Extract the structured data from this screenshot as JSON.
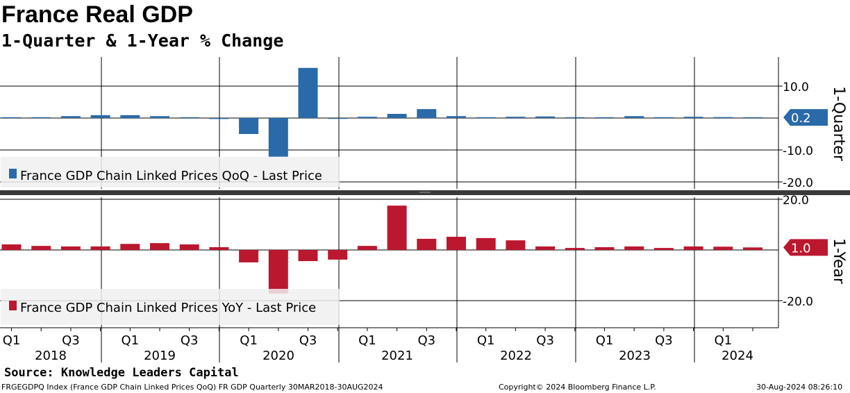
{
  "header": {
    "title": "France Real GDP",
    "subtitle": "1-Quarter & 1-Year % Change"
  },
  "chart_data": [
    {
      "type": "bar",
      "name": "top",
      "title": "1-Quarter",
      "series_name": "France GDP Chain Linked Prices QoQ - Last Price",
      "color": "#2a6aa8",
      "categories": [
        "2018Q1",
        "2018Q2",
        "2018Q3",
        "2018Q4",
        "2019Q1",
        "2019Q2",
        "2019Q3",
        "2019Q4",
        "2020Q1",
        "2020Q2",
        "2020Q3",
        "2020Q4",
        "2021Q1",
        "2021Q2",
        "2021Q3",
        "2021Q4",
        "2022Q1",
        "2022Q2",
        "2022Q3",
        "2022Q4",
        "2023Q1",
        "2023Q2",
        "2023Q3",
        "2023Q4",
        "2024Q1",
        "2024Q2"
      ],
      "values": [
        0.1,
        0.2,
        0.6,
        0.9,
        0.9,
        0.6,
        0.1,
        -0.3,
        -5.0,
        -12.1,
        15.7,
        -0.1,
        0.4,
        1.3,
        2.8,
        0.6,
        0.0,
        0.4,
        0.5,
        0.1,
        0.1,
        0.6,
        0.1,
        0.4,
        0.3,
        0.2
      ],
      "ylim": [
        -22,
        18
      ],
      "yticks": [
        10,
        -10,
        -20
      ],
      "ytick_labels": [
        "10.0",
        "-10.0",
        "-20.0"
      ],
      "last_value": "0.2",
      "ylabel": "1-Quarter"
    },
    {
      "type": "bar",
      "name": "bottom",
      "title": "1-Year",
      "series_name": "France GDP Chain Linked Prices YoY - Last Price",
      "color": "#bb1830",
      "categories": [
        "2018Q1",
        "2018Q2",
        "2018Q3",
        "2018Q4",
        "2019Q1",
        "2019Q2",
        "2019Q3",
        "2019Q4",
        "2020Q1",
        "2020Q2",
        "2020Q3",
        "2020Q4",
        "2021Q1",
        "2021Q2",
        "2021Q3",
        "2021Q4",
        "2022Q1",
        "2022Q2",
        "2022Q3",
        "2022Q4",
        "2023Q1",
        "2023Q2",
        "2023Q3",
        "2023Q4",
        "2024Q1",
        "2024Q2"
      ],
      "values": [
        2.2,
        1.6,
        1.4,
        1.4,
        2.4,
        2.7,
        2.2,
        1.1,
        -4.9,
        -17.2,
        -4.4,
        -3.8,
        1.6,
        17.5,
        4.4,
        5.2,
        4.7,
        3.8,
        1.4,
        0.8,
        1.1,
        1.4,
        0.8,
        1.4,
        1.3,
        1.0
      ],
      "ylim": [
        -30,
        21
      ],
      "yticks": [
        20,
        -20
      ],
      "ytick_labels": [
        "20.0",
        "-20.0"
      ],
      "last_value": "1.0",
      "ylabel": "1-Year"
    }
  ],
  "xaxis": {
    "quarter_labels": [
      "Q1",
      "Q3",
      "Q1",
      "Q3",
      "Q1",
      "Q3",
      "Q1",
      "Q3",
      "Q1",
      "Q3",
      "Q1",
      "Q3",
      "Q1"
    ],
    "years": [
      "2018",
      "2019",
      "2020",
      "2021",
      "2022",
      "2023",
      "2024"
    ]
  },
  "footer": {
    "source": "Source: Knowledge Leaders Capital",
    "ticker": "FRGEGDPQ Index (France GDP Chain Linked Prices QoQ) FR GDP  Quarterly 30MAR2018-30AUG2024",
    "copyright": "Copyright© 2024 Bloomberg Finance L.P.",
    "timestamp": "30-Aug-2024 08:26:10"
  }
}
